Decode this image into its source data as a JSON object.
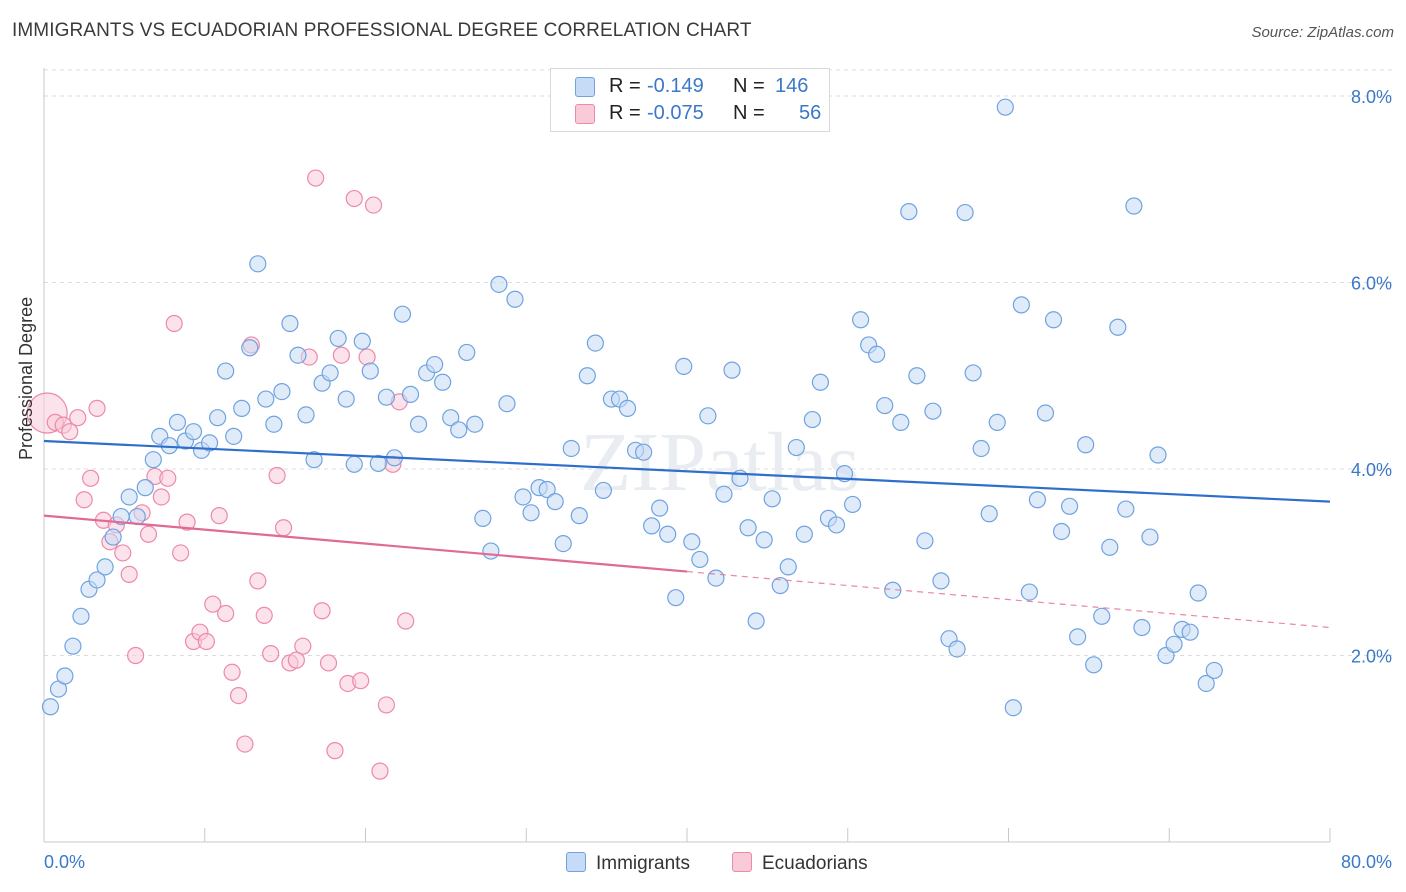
{
  "title": "IMMIGRANTS VS ECUADORIAN PROFESSIONAL DEGREE CORRELATION CHART",
  "source": "Source: ZipAtlas.com",
  "watermark": "ZIPatlas",
  "legend": {
    "rows": [
      {
        "r_label": "R =",
        "r_value": "-0.149",
        "n_label": "N =",
        "n_value": "146",
        "color": "#6fa3e0",
        "fill": "#b8d2f2"
      },
      {
        "r_label": "R =",
        "r_value": "-0.075",
        "n_label": "N =",
        "n_value": "56",
        "color": "#ec8aa8",
        "fill": "#f8c4d3"
      }
    ]
  },
  "bottom_legend": {
    "immigrants": "Immigrants",
    "ecuadorians": "Ecuadorians"
  },
  "colors": {
    "immigrants_stroke": "#6fa3e0",
    "immigrants_fill": "#c6dbf5",
    "ecuadorians_stroke": "#ec8aa8",
    "ecuadorians_fill": "#f9cbd8",
    "trend_blue": "#2f6fcc",
    "trend_pink": "#e06a92",
    "tick_label": "#3a78c9"
  },
  "chart_data": {
    "type": "scatter",
    "title": "IMMIGRANTS VS ECUADORIAN PROFESSIONAL DEGREE CORRELATION CHART",
    "xlabel": "",
    "ylabel": "Professional Degree",
    "xlim": [
      0,
      80
    ],
    "ylim": [
      0,
      8.3
    ],
    "x_tick_labels": [
      "0.0%",
      "80.0%"
    ],
    "y_ticks": [
      2.0,
      4.0,
      6.0,
      8.0
    ],
    "y_tick_labels": [
      "2.0%",
      "4.0%",
      "6.0%",
      "8.0%"
    ],
    "grid": "horizontal dashed",
    "legend_placement": "top-center",
    "series": [
      {
        "name": "Immigrants",
        "r": -0.149,
        "n": 146,
        "trend": {
          "x": [
            0,
            80
          ],
          "y": [
            4.3,
            3.65
          ]
        },
        "points": [
          [
            0.4,
            1.45
          ],
          [
            0.9,
            1.64
          ],
          [
            1.3,
            1.78
          ],
          [
            1.8,
            2.1
          ],
          [
            2.3,
            2.42
          ],
          [
            2.8,
            2.71
          ],
          [
            3.3,
            2.81
          ],
          [
            3.8,
            2.95
          ],
          [
            4.3,
            3.27
          ],
          [
            4.8,
            3.49
          ],
          [
            5.3,
            3.7
          ],
          [
            5.8,
            3.49
          ],
          [
            6.3,
            3.8
          ],
          [
            6.8,
            4.1
          ],
          [
            7.2,
            4.35
          ],
          [
            7.8,
            4.25
          ],
          [
            8.3,
            4.5
          ],
          [
            8.8,
            4.3
          ],
          [
            9.3,
            4.4
          ],
          [
            9.8,
            4.2
          ],
          [
            10.3,
            4.28
          ],
          [
            10.8,
            4.55
          ],
          [
            11.3,
            5.05
          ],
          [
            11.8,
            4.35
          ],
          [
            12.3,
            4.65
          ],
          [
            12.8,
            5.3
          ],
          [
            13.3,
            6.2
          ],
          [
            13.8,
            4.75
          ],
          [
            14.3,
            4.48
          ],
          [
            14.8,
            4.83
          ],
          [
            15.3,
            5.56
          ],
          [
            15.8,
            5.22
          ],
          [
            16.3,
            4.58
          ],
          [
            16.8,
            4.1
          ],
          [
            17.3,
            4.92
          ],
          [
            17.8,
            5.03
          ],
          [
            18.3,
            5.4
          ],
          [
            18.8,
            4.75
          ],
          [
            19.3,
            4.05
          ],
          [
            19.8,
            5.37
          ],
          [
            20.3,
            5.05
          ],
          [
            20.8,
            4.06
          ],
          [
            21.3,
            4.77
          ],
          [
            21.8,
            4.12
          ],
          [
            22.3,
            5.66
          ],
          [
            22.8,
            4.8
          ],
          [
            23.3,
            4.48
          ],
          [
            23.8,
            5.03
          ],
          [
            24.3,
            5.12
          ],
          [
            24.8,
            4.93
          ],
          [
            25.3,
            4.55
          ],
          [
            25.8,
            4.42
          ],
          [
            26.3,
            5.25
          ],
          [
            26.8,
            4.48
          ],
          [
            27.3,
            3.47
          ],
          [
            27.8,
            3.12
          ],
          [
            28.3,
            5.98
          ],
          [
            28.8,
            4.7
          ],
          [
            29.3,
            5.82
          ],
          [
            29.8,
            3.7
          ],
          [
            30.3,
            3.53
          ],
          [
            30.8,
            3.8
          ],
          [
            31.3,
            3.78
          ],
          [
            31.8,
            3.65
          ],
          [
            32.3,
            3.2
          ],
          [
            32.8,
            4.22
          ],
          [
            33.3,
            3.5
          ],
          [
            33.8,
            5.0
          ],
          [
            34.3,
            5.35
          ],
          [
            34.8,
            3.77
          ],
          [
            35.3,
            4.75
          ],
          [
            35.8,
            4.75
          ],
          [
            36.3,
            4.65
          ],
          [
            36.8,
            4.2
          ],
          [
            37.3,
            4.18
          ],
          [
            37.8,
            3.39
          ],
          [
            38.3,
            3.58
          ],
          [
            38.8,
            3.3
          ],
          [
            39.3,
            2.62
          ],
          [
            39.8,
            5.1
          ],
          [
            40.3,
            3.22
          ],
          [
            40.8,
            3.03
          ],
          [
            41.3,
            4.57
          ],
          [
            41.8,
            2.83
          ],
          [
            42.3,
            3.73
          ],
          [
            42.8,
            5.06
          ],
          [
            43.3,
            3.9
          ],
          [
            43.8,
            3.37
          ],
          [
            44.3,
            2.37
          ],
          [
            44.8,
            3.24
          ],
          [
            45.3,
            3.68
          ],
          [
            45.8,
            2.75
          ],
          [
            46.3,
            2.95
          ],
          [
            46.8,
            4.23
          ],
          [
            47.3,
            3.3
          ],
          [
            47.8,
            4.53
          ],
          [
            48.3,
            4.93
          ],
          [
            48.8,
            3.47
          ],
          [
            49.3,
            3.4
          ],
          [
            49.8,
            3.95
          ],
          [
            50.3,
            3.62
          ],
          [
            50.8,
            5.6
          ],
          [
            51.3,
            5.33
          ],
          [
            51.8,
            5.23
          ],
          [
            52.3,
            4.68
          ],
          [
            52.8,
            2.7
          ],
          [
            53.3,
            4.5
          ],
          [
            53.8,
            6.76
          ],
          [
            54.3,
            5.0
          ],
          [
            54.8,
            3.23
          ],
          [
            55.3,
            4.62
          ],
          [
            55.8,
            2.8
          ],
          [
            56.3,
            2.18
          ],
          [
            56.8,
            2.07
          ],
          [
            57.3,
            6.75
          ],
          [
            57.8,
            5.03
          ],
          [
            58.3,
            4.22
          ],
          [
            58.8,
            3.52
          ],
          [
            59.3,
            4.5
          ],
          [
            59.8,
            7.88
          ],
          [
            60.3,
            1.44
          ],
          [
            60.8,
            5.76
          ],
          [
            61.3,
            2.68
          ],
          [
            61.8,
            3.67
          ],
          [
            62.3,
            4.6
          ],
          [
            62.8,
            5.6
          ],
          [
            63.3,
            3.33
          ],
          [
            63.8,
            3.6
          ],
          [
            64.3,
            2.2
          ],
          [
            64.8,
            4.26
          ],
          [
            65.3,
            1.9
          ],
          [
            65.8,
            2.42
          ],
          [
            66.3,
            3.16
          ],
          [
            66.8,
            5.52
          ],
          [
            67.3,
            3.57
          ],
          [
            67.8,
            6.82
          ],
          [
            68.3,
            2.3
          ],
          [
            68.8,
            3.27
          ],
          [
            69.3,
            4.15
          ],
          [
            69.8,
            2.0
          ],
          [
            70.3,
            2.12
          ],
          [
            70.8,
            2.28
          ],
          [
            71.3,
            2.25
          ],
          [
            71.8,
            2.67
          ],
          [
            72.3,
            1.7
          ],
          [
            72.8,
            1.84
          ]
        ]
      },
      {
        "name": "Ecuadorians",
        "r": -0.075,
        "n": 56,
        "trend": {
          "x": [
            0,
            80
          ],
          "y": [
            3.5,
            2.3
          ]
        },
        "trend_solid_until_x": 40,
        "points": [
          [
            0.2,
            4.6
          ],
          [
            0.7,
            4.5
          ],
          [
            1.2,
            4.47
          ],
          [
            1.6,
            4.4
          ],
          [
            2.1,
            4.55
          ],
          [
            2.5,
            3.67
          ],
          [
            2.9,
            3.9
          ],
          [
            3.3,
            4.65
          ],
          [
            3.7,
            3.45
          ],
          [
            4.1,
            3.22
          ],
          [
            4.5,
            3.4
          ],
          [
            4.9,
            3.1
          ],
          [
            5.3,
            2.87
          ],
          [
            5.7,
            2.0
          ],
          [
            6.1,
            3.53
          ],
          [
            6.5,
            3.3
          ],
          [
            6.9,
            3.92
          ],
          [
            7.3,
            3.7
          ],
          [
            7.7,
            3.9
          ],
          [
            8.1,
            5.56
          ],
          [
            8.5,
            3.1
          ],
          [
            8.9,
            3.43
          ],
          [
            9.3,
            2.15
          ],
          [
            9.7,
            2.25
          ],
          [
            10.1,
            2.15
          ],
          [
            10.5,
            2.55
          ],
          [
            10.9,
            3.5
          ],
          [
            11.3,
            2.45
          ],
          [
            11.7,
            1.82
          ],
          [
            12.1,
            1.57
          ],
          [
            12.5,
            1.05
          ],
          [
            12.9,
            5.33
          ],
          [
            13.3,
            2.8
          ],
          [
            13.7,
            2.43
          ],
          [
            14.1,
            2.02
          ],
          [
            14.5,
            3.93
          ],
          [
            14.9,
            3.37
          ],
          [
            15.3,
            1.92
          ],
          [
            15.7,
            1.95
          ],
          [
            16.1,
            2.1
          ],
          [
            16.5,
            5.2
          ],
          [
            16.9,
            7.12
          ],
          [
            17.3,
            2.48
          ],
          [
            17.7,
            1.92
          ],
          [
            18.1,
            0.98
          ],
          [
            18.5,
            5.22
          ],
          [
            18.9,
            1.7
          ],
          [
            19.3,
            6.9
          ],
          [
            19.7,
            1.73
          ],
          [
            20.1,
            5.2
          ],
          [
            20.5,
            6.83
          ],
          [
            20.9,
            0.76
          ],
          [
            21.3,
            1.47
          ],
          [
            21.7,
            4.05
          ],
          [
            22.1,
            4.72
          ],
          [
            22.5,
            2.37
          ]
        ]
      }
    ]
  }
}
